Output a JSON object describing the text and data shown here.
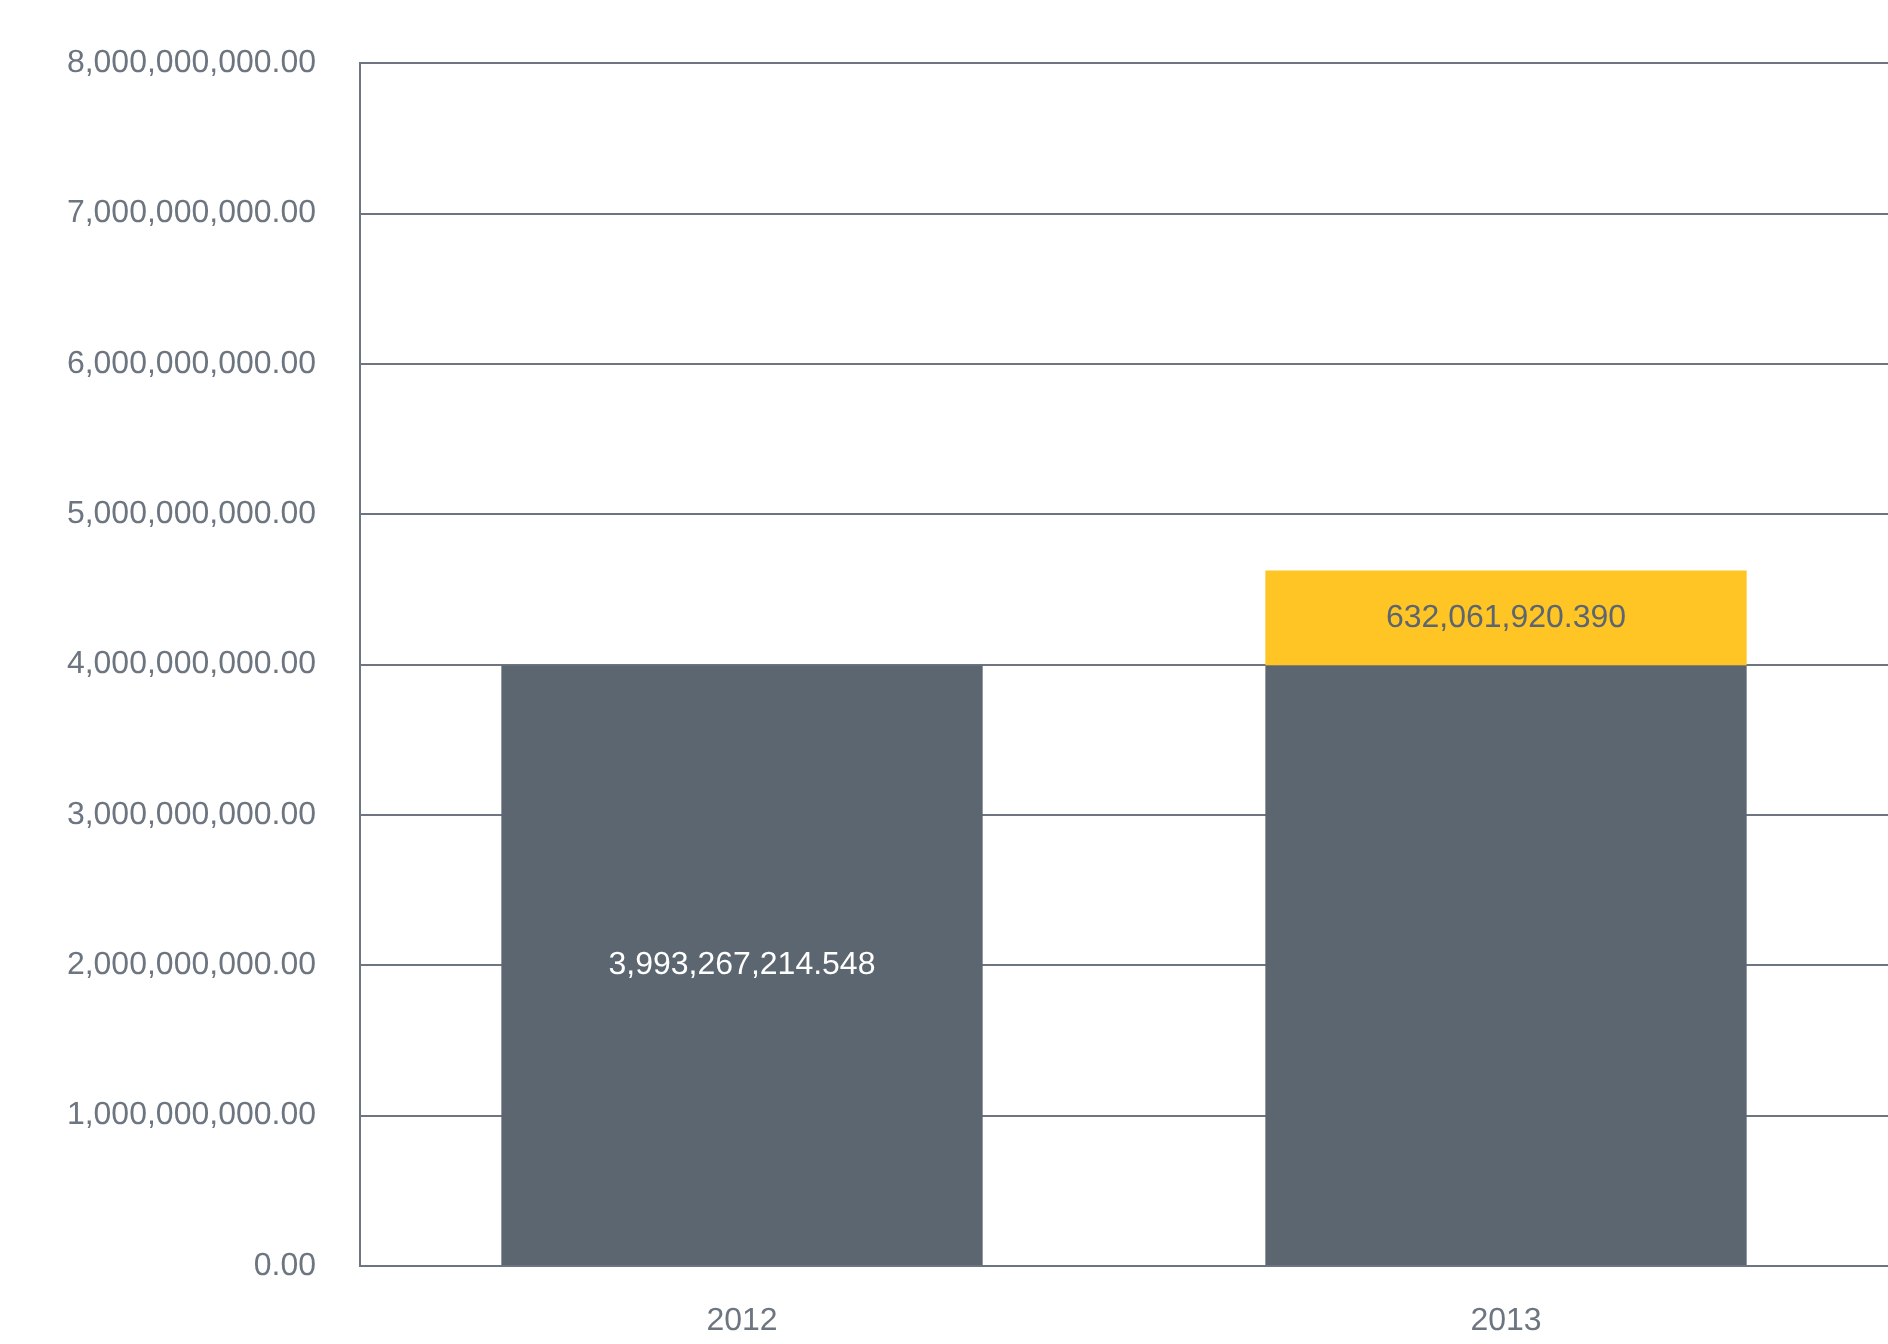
{
  "chart_data": {
    "type": "bar",
    "stacked": true,
    "categories": [
      "2012",
      "2013"
    ],
    "series": [
      {
        "color": "#5c6670",
        "values": [
          3993267214.548,
          3993267214.548
        ],
        "value_labels": [
          "3,993,267,214.548",
          null
        ]
      },
      {
        "color": "#ffc524",
        "values": [
          null,
          632061920.39
        ],
        "value_labels": [
          null,
          "632,061,920.390"
        ]
      }
    ],
    "ylim": [
      0,
      8000000000
    ],
    "yticks": [
      {
        "value": 0,
        "label": "0.00"
      },
      {
        "value": 1000000000,
        "label": "1,000,000,000.00"
      },
      {
        "value": 2000000000,
        "label": "2,000,000,000.00"
      },
      {
        "value": 3000000000,
        "label": "3,000,000,000.00"
      },
      {
        "value": 4000000000,
        "label": "4,000,000,000.00"
      },
      {
        "value": 5000000000,
        "label": "5,000,000,000.00"
      },
      {
        "value": 6000000000,
        "label": "6,000,000,000.00"
      },
      {
        "value": 7000000000,
        "label": "7,000,000,000.00"
      },
      {
        "value": 8000000000,
        "label": "8,000,000,000.00"
      }
    ],
    "grid": "y",
    "legend": false
  }
}
